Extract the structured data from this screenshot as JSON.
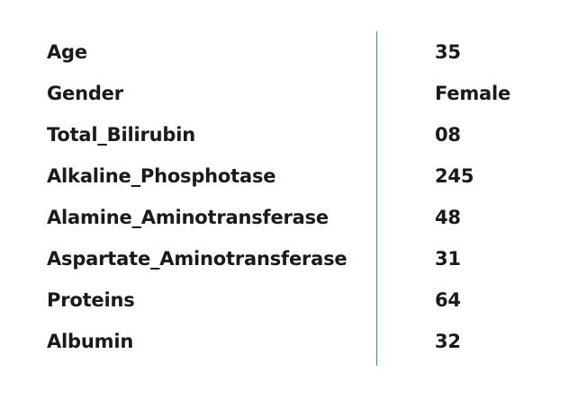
{
  "table": {
    "rows": [
      {
        "label": "Age",
        "value": "35"
      },
      {
        "label": "Gender",
        "value": "Female"
      },
      {
        "label": "Total_Bilirubin",
        "value": "08"
      },
      {
        "label": "Alkaline_Phosphotase",
        "value": "245"
      },
      {
        "label": "Alamine_Aminotransferase",
        "value": "48"
      },
      {
        "label": "Aspartate_Aminotransferase",
        "value": "31"
      },
      {
        "label": "Proteins",
        "value": "64"
      },
      {
        "label": "Albumin",
        "value": "32"
      }
    ]
  },
  "colors": {
    "text": "#1a1a1a",
    "divider": "#4f81bd",
    "background": "#ffffff"
  }
}
